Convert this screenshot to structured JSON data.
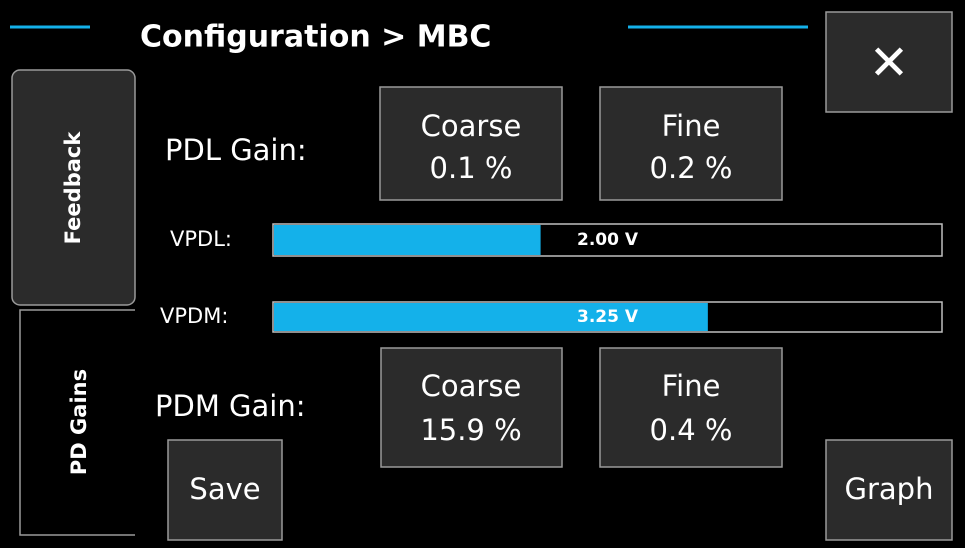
{
  "header": {
    "title": "Configuration > MBC",
    "close": "✕"
  },
  "tabs": [
    "Feedback",
    "PD Gains"
  ],
  "pdl_gain": {
    "label": "PDL Gain:",
    "coarse": {
      "label": "Coarse",
      "value": "0.1 %"
    },
    "fine": {
      "label": "Fine",
      "value": "0.2 %"
    }
  },
  "gauges": [
    {
      "label": "VPDL:",
      "value": 2,
      "value_label": "2.00 V",
      "range": [
        0,
        5
      ],
      "color": "#14b1ea"
    },
    {
      "label": "VPDM:",
      "value": 3.25,
      "value_label": "3.25 V",
      "range": [
        0,
        5
      ],
      "color": "#14b1ea"
    }
  ],
  "pdm_gain": {
    "label": "PDM Gain:",
    "coarse": {
      "label": "Coarse",
      "value": "15.9 %"
    },
    "fine": {
      "label": "Fine",
      "value": "0.4 %"
    }
  },
  "buttons": {
    "save": "Save",
    "graph": "Graph"
  }
}
